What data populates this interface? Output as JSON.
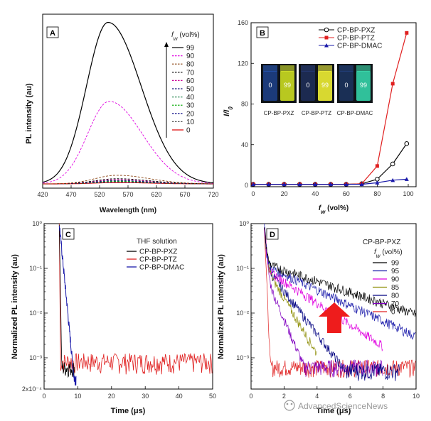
{
  "chart_data": [
    {
      "panel": "A",
      "type": "line",
      "xlabel": "Wavelength (nm)",
      "ylabel": "PL intensity (au)",
      "xlim": [
        420,
        720
      ],
      "xticks": [
        "420",
        "470",
        "520",
        "570",
        "620",
        "670",
        "720"
      ],
      "legend_title": "f_w (vol%)",
      "legend_position": "top-right",
      "series": [
        {
          "name": "99",
          "color": "#000000",
          "dash": "solid",
          "peak_nm": 535,
          "peak_rel": 0.94
        },
        {
          "name": "90",
          "color": "#e000e0",
          "dash": "dashed",
          "peak_nm": 537,
          "peak_rel": 0.48
        },
        {
          "name": "80",
          "color": "#8b4513",
          "dash": "dashed",
          "peak_nm": 550,
          "peak_rel": 0.05
        },
        {
          "name": "70",
          "color": "#000000",
          "dash": "dashed",
          "peak_nm": 550,
          "peak_rel": 0.03
        },
        {
          "name": "60",
          "color": "#cc0099",
          "dash": "dashed",
          "peak_nm": 550,
          "peak_rel": 0.025
        },
        {
          "name": "50",
          "color": "#1a1a7a",
          "dash": "dashed",
          "peak_nm": 550,
          "peak_rel": 0.02
        },
        {
          "name": "40",
          "color": "#2e8b57",
          "dash": "dashed",
          "peak_nm": 550,
          "peak_rel": 0.018
        },
        {
          "name": "30",
          "color": "#00aa00",
          "dash": "dashed",
          "peak_nm": 550,
          "peak_rel": 0.015
        },
        {
          "name": "20",
          "color": "#000080",
          "dash": "dashed",
          "peak_nm": 550,
          "peak_rel": 0.012
        },
        {
          "name": "10",
          "color": "#555555",
          "dash": "dashed",
          "peak_nm": 550,
          "peak_rel": 0.01
        },
        {
          "name": "0",
          "color": "#dd0000",
          "dash": "solid",
          "peak_nm": 550,
          "peak_rel": 0.008
        }
      ]
    },
    {
      "panel": "B",
      "type": "line",
      "xlabel": "f_w (vol%)",
      "ylabel": "I/I_0",
      "xlim": [
        0,
        100
      ],
      "ylim": [
        0,
        160
      ],
      "xticks": [
        0,
        20,
        40,
        60,
        80,
        100
      ],
      "yticks": [
        0,
        40,
        80,
        120,
        160
      ],
      "legend_position": "top-left",
      "x": [
        0,
        10,
        20,
        30,
        40,
        50,
        60,
        70,
        80,
        90,
        99
      ],
      "series": [
        {
          "name": "CP-BP-PXZ",
          "color": "#000000",
          "marker": "circle-open",
          "values": [
            1,
            1,
            1,
            1,
            1,
            1,
            1,
            1.5,
            6,
            21,
            41
          ]
        },
        {
          "name": "CP-BP-PTZ",
          "color": "#e02020",
          "marker": "square",
          "values": [
            1,
            1,
            1,
            1,
            1,
            1,
            1,
            1.5,
            19,
            100,
            150
          ]
        },
        {
          "name": "CP-BP-DMAC",
          "color": "#1a1aaa",
          "marker": "triangle",
          "values": [
            1,
            1,
            1,
            1,
            1,
            1,
            1,
            1,
            2.5,
            5,
            6
          ]
        }
      ],
      "inset": {
        "photos": [
          {
            "label": "CP-BP-PXZ",
            "left_text": "0",
            "right_text": "99"
          },
          {
            "label": "CP-BP-PTZ",
            "left_text": "0",
            "right_text": "99"
          },
          {
            "label": "CP-BP-DMAC",
            "left_text": "0",
            "right_text": "99"
          }
        ]
      }
    },
    {
      "panel": "C",
      "type": "line",
      "xlabel": "Time (μs)",
      "ylabel": "Normalized PL intensity (au)",
      "xlim": [
        0,
        50
      ],
      "y_scale": "log",
      "ylim": [
        0.0002,
        1
      ],
      "xticks": [
        0,
        10,
        20,
        30,
        40,
        50
      ],
      "ytick_labels": [
        "2x10⁻⁴",
        "10⁻³",
        "10⁻²",
        "10⁻¹",
        "10⁰"
      ],
      "legend_title": "THF solution",
      "legend_position": "top-right",
      "series": [
        {
          "name": "CP-BP-PXZ",
          "color": "#000000"
        },
        {
          "name": "CP-BP-PTZ",
          "color": "#e02020"
        },
        {
          "name": "CP-BP-DMAC",
          "color": "#1a1aaa"
        }
      ]
    },
    {
      "panel": "D",
      "type": "line",
      "xlabel": "Time (μs)",
      "ylabel": "Normalized PL intensity (au)",
      "xlim": [
        0,
        10
      ],
      "y_scale": "log",
      "ylim": [
        0.0002,
        1
      ],
      "xticks": [
        0,
        2,
        4,
        6,
        8,
        10
      ],
      "ytick_labels": [
        "10⁻³",
        "10⁻²",
        "10⁻¹",
        "10⁰"
      ],
      "legend_title": "CP-BP-PXZ",
      "legend_subtitle": "f_w (vol%)",
      "legend_position": "top-right",
      "series": [
        {
          "name": "99",
          "color": "#000000"
        },
        {
          "name": "95",
          "color": "#1a1aaa"
        },
        {
          "name": "90",
          "color": "#e000e0"
        },
        {
          "name": "85",
          "color": "#8b8b00"
        },
        {
          "name": "80",
          "color": "#000080"
        },
        {
          "name": "70",
          "color": "#8000c0"
        },
        {
          "name": "0",
          "color": "#e02020"
        }
      ]
    }
  ],
  "watermark": "AdvancedScienceNews"
}
